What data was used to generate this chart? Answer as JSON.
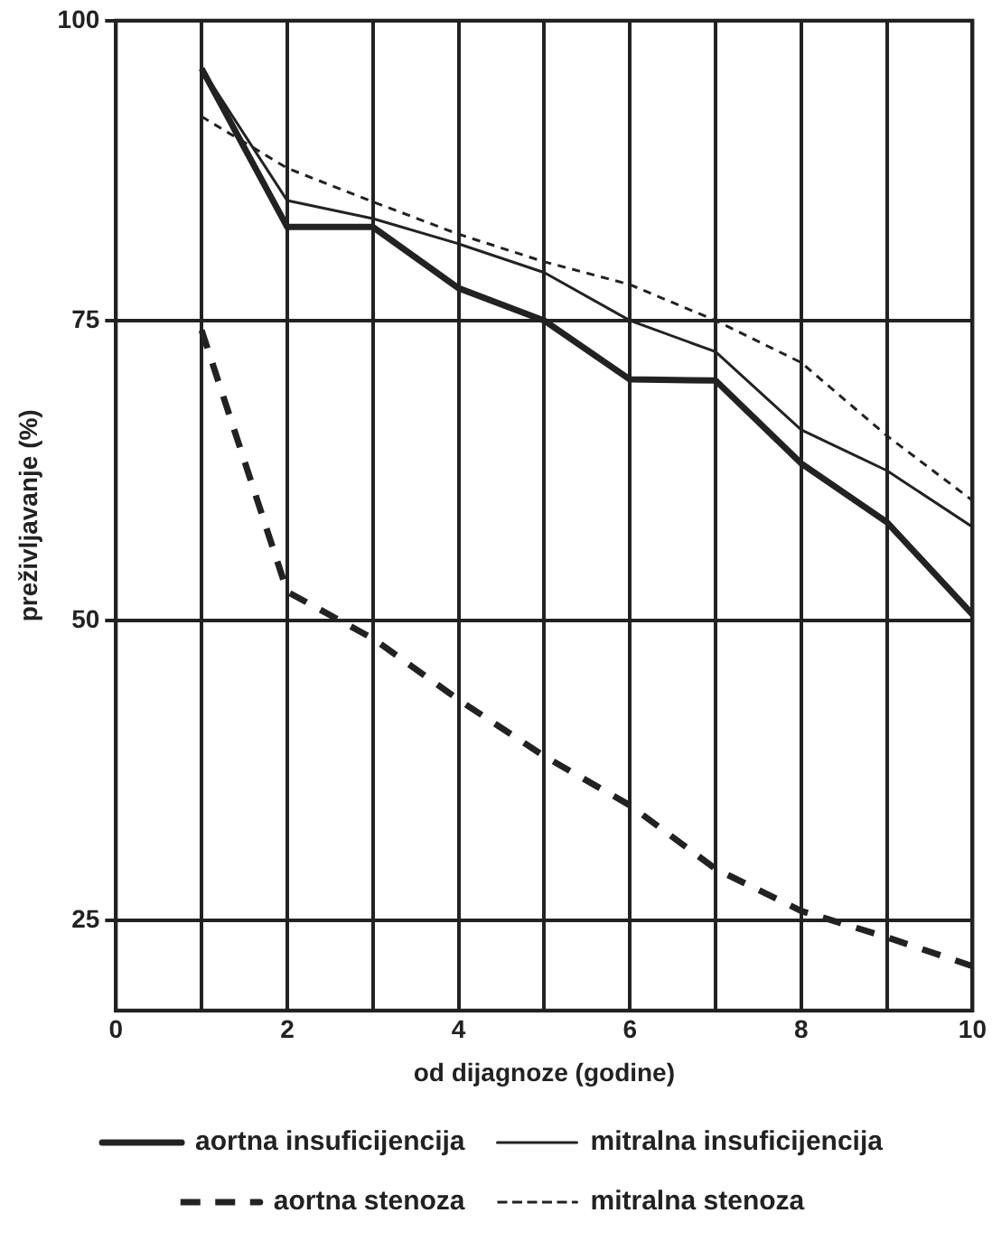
{
  "chart_data": {
    "type": "line",
    "xlabel": "od dijagnoze (godine)",
    "ylabel": "preživljavanje (%)",
    "x": [
      1,
      2,
      3,
      4,
      5,
      6,
      7,
      8,
      9,
      10
    ],
    "xlim": [
      0,
      10
    ],
    "xticks": [
      0,
      {
        "value": 1,
        "label": null
      },
      2,
      {
        "value": 3,
        "label": null
      },
      4,
      {
        "value": 5,
        "label": null
      },
      6,
      {
        "value": 7,
        "label": null
      },
      8,
      {
        "value": 9,
        "label": null
      },
      10
    ],
    "ylim": [
      17.5,
      100
    ],
    "yticks": [
      25,
      50,
      75,
      100
    ],
    "grid": true,
    "legend": "bottom",
    "marker": "none",
    "series": [
      {
        "name": "aortna insuficijencija",
        "color": "#222222",
        "line_style": "solid",
        "values": [
          96,
          82.8,
          82.8,
          77.7,
          75,
          70.1,
          70,
          63.1,
          58.2,
          50.5
        ]
      },
      {
        "name": "mitralna insuficijencija",
        "color": "#222222",
        "line_style": "solid",
        "values": [
          96,
          85,
          83.5,
          81.4,
          79,
          75,
          72.4,
          65.9,
          62.5,
          57.8
        ]
      },
      {
        "name": "aortna stenoza",
        "color": "#222222",
        "line_style": "dashed",
        "values": [
          74.2,
          52.4,
          48.5,
          43.4,
          38.7,
          34.6,
          29.3,
          25.8,
          23.6,
          21.2
        ]
      },
      {
        "name": "mitralna stenoza",
        "color": "#222222",
        "line_style": "dashed",
        "values": [
          92,
          87.7,
          84.9,
          82.2,
          79.9,
          78,
          75,
          71.5,
          65.4,
          60
        ]
      }
    ]
  }
}
